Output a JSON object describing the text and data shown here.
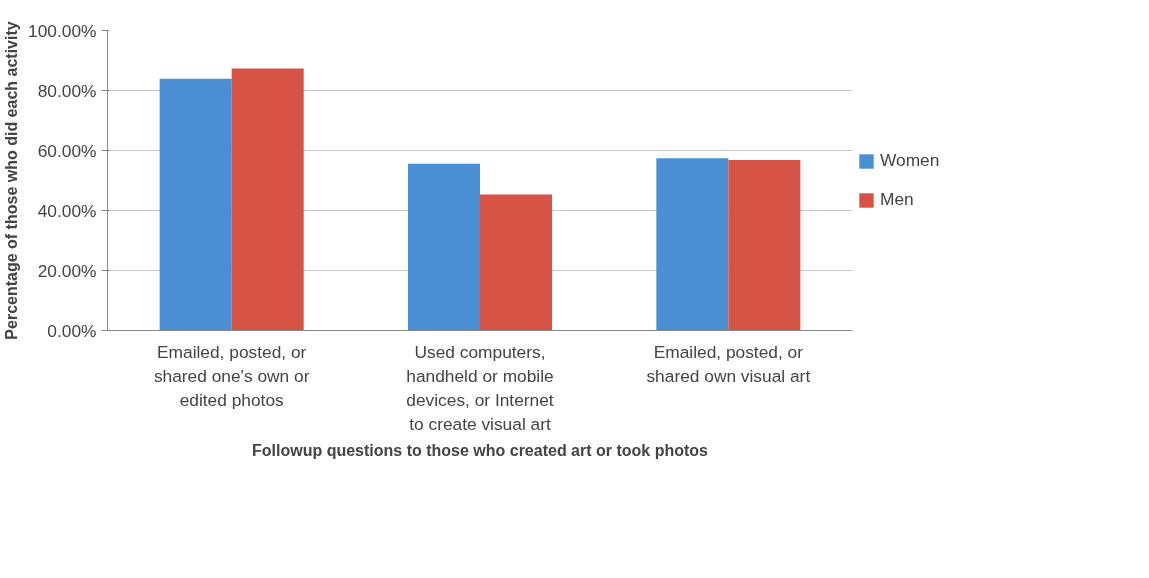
{
  "chart_data": {
    "type": "bar",
    "xlabel": "Followup questions to those who created art or took photos",
    "ylabel": "Percentage of those who did each activity",
    "categories": [
      "Emailed, posted, or shared one's own or edited photos",
      "Used computers, handheld or mobile devices, or Internet to create visual art",
      "Emailed, posted, or shared own visual art"
    ],
    "series": [
      {
        "name": "Women",
        "color": "#4a8fd4",
        "values": [
          83.9,
          55.6,
          57.4
        ]
      },
      {
        "name": "Men",
        "color": "#d65245",
        "values": [
          87.3,
          45.3,
          56.8
        ]
      }
    ],
    "ylim": [
      0,
      100
    ],
    "yticks": [
      {
        "value": 0,
        "label": "0.00%"
      },
      {
        "value": 20,
        "label": "20.00%"
      },
      {
        "value": 40,
        "label": "40.00%"
      },
      {
        "value": 60,
        "label": "60.00%"
      },
      {
        "value": 80,
        "label": "80.00%"
      },
      {
        "value": 100,
        "label": "100.00%"
      }
    ],
    "grid": "y",
    "legend": "right"
  }
}
